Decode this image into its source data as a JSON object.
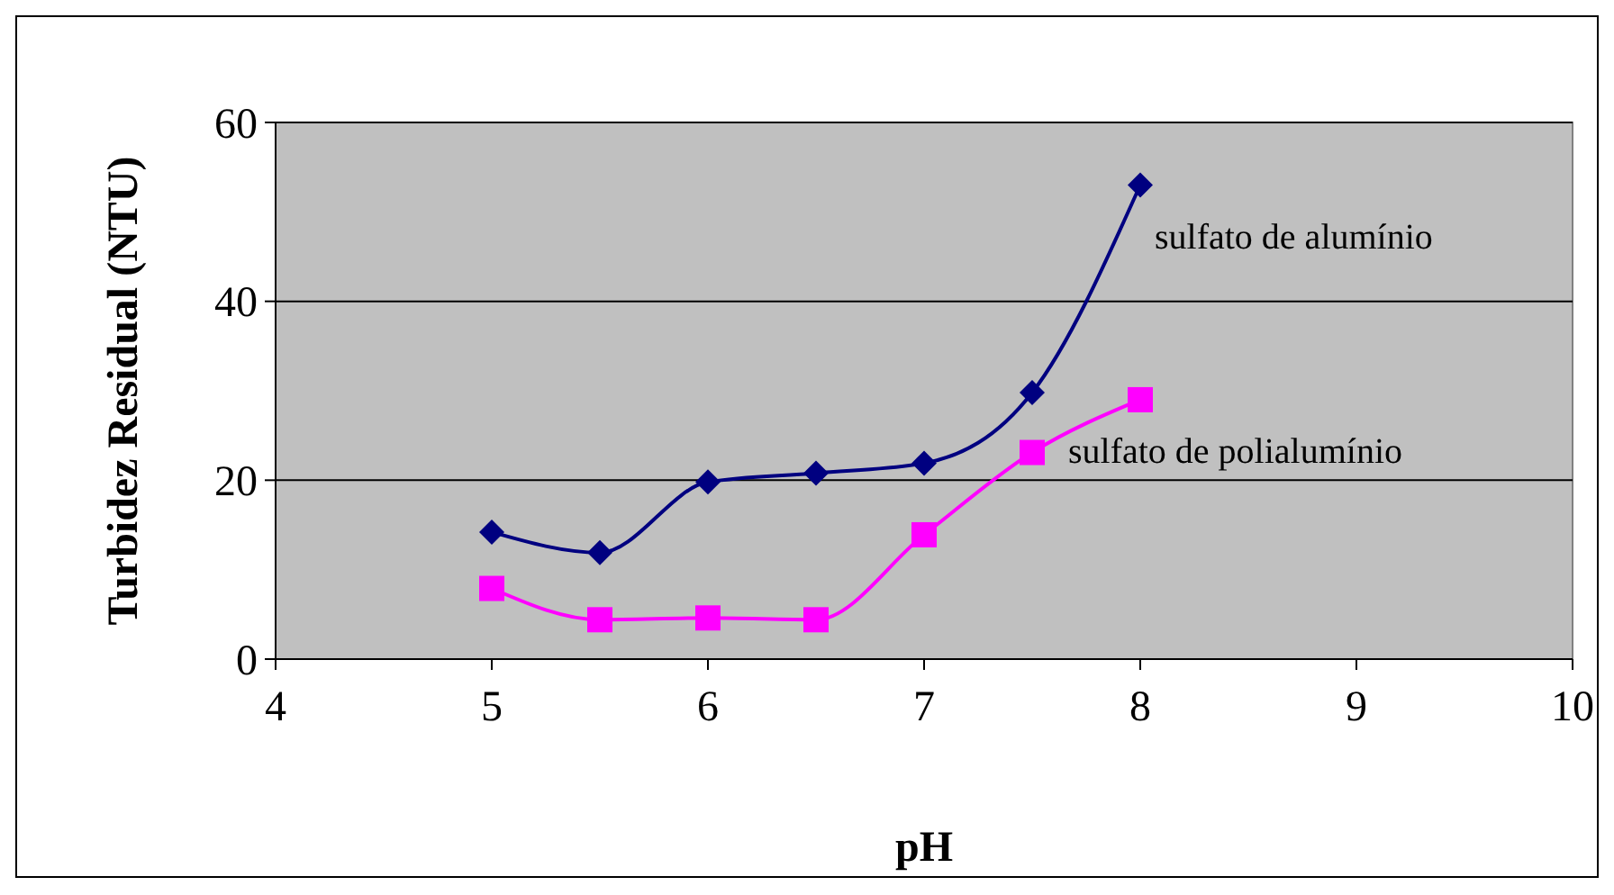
{
  "chart_data": {
    "type": "line",
    "xlabel": "pH",
    "ylabel": "Turbidez Residual (NTU)",
    "x": [
      5,
      5.5,
      6,
      6.5,
      7,
      7.5,
      8
    ],
    "xlim": [
      4,
      10
    ],
    "xticks": [
      4,
      5,
      6,
      7,
      8,
      9,
      10
    ],
    "ylim": [
      0,
      60
    ],
    "yticks": [
      0,
      20,
      40,
      60
    ],
    "grid": "y",
    "series": [
      {
        "name": "sulfato de alumínio",
        "color": "#000080",
        "marker": "diamond",
        "values": [
          14.2,
          11.9,
          19.8,
          20.8,
          21.9,
          29.8,
          53
        ]
      },
      {
        "name": "sulfato de polialumínio",
        "color": "#ff00ff",
        "marker": "square",
        "values": [
          7.9,
          4.4,
          4.6,
          4.4,
          13.9,
          23.1,
          29
        ]
      }
    ]
  }
}
